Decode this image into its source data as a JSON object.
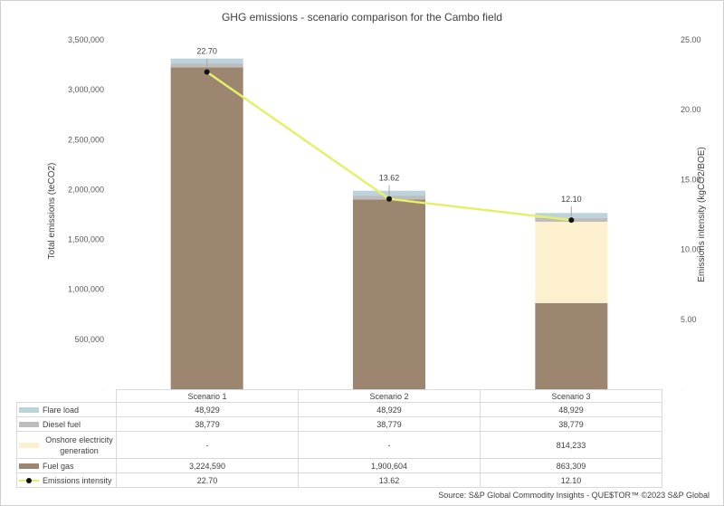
{
  "chart_data": {
    "type": "bar",
    "stacked": true,
    "title": "GHG emissions - scenario comparison for the Cambo field",
    "categories": [
      "Scenario 1",
      "Scenario 2",
      "Scenario 3"
    ],
    "ylabel": "Total emissions (teCO2)",
    "ylim": [
      0,
      3500000
    ],
    "yticks": [
      "-",
      "500,000",
      "1,000,000",
      "1,500,000",
      "2,000,000",
      "2,500,000",
      "3,000,000",
      "3,500,000"
    ],
    "y2label": "Emissions intensity (kgCO2/BOE)",
    "y2lim": [
      0,
      25
    ],
    "y2ticks": [
      "-",
      "5.00",
      "10.00",
      "15.00",
      "20.00",
      "25.00"
    ],
    "series": [
      {
        "name": "Fuel gas",
        "color": "#9c8670",
        "values": [
          3224590,
          1900604,
          863309
        ],
        "display": [
          "3,224,590",
          "1,900,604",
          "863,309"
        ]
      },
      {
        "name": "Onshore electricity generation",
        "color": "#fdf0cf",
        "values": [
          0,
          0,
          814233
        ],
        "display": [
          "-",
          "-",
          "814,233"
        ]
      },
      {
        "name": "Diesel fuel",
        "color": "#bdbdbd",
        "values": [
          38779,
          38779,
          38779
        ],
        "display": [
          "38,779",
          "38,779",
          "38,779"
        ]
      },
      {
        "name": "Flare load",
        "color": "#bcd3dc",
        "values": [
          48929,
          48929,
          48929
        ],
        "display": [
          "48,929",
          "48,929",
          "48,929"
        ]
      }
    ],
    "line_series": {
      "name": "Emissions intensity",
      "color": "#e5f06a",
      "marker_color": "#111111",
      "values": [
        22.7,
        13.62,
        12.1
      ],
      "labels": [
        "22.70",
        "13.62",
        "12.10"
      ]
    },
    "table_order": [
      "Flare load",
      "Diesel fuel",
      "Onshore electricity generation",
      "Fuel gas",
      "Emissions intensity"
    ]
  },
  "source": "Source: S&P Global Commodity Insights - QUE$TOR™ ©2023 S&P Global"
}
